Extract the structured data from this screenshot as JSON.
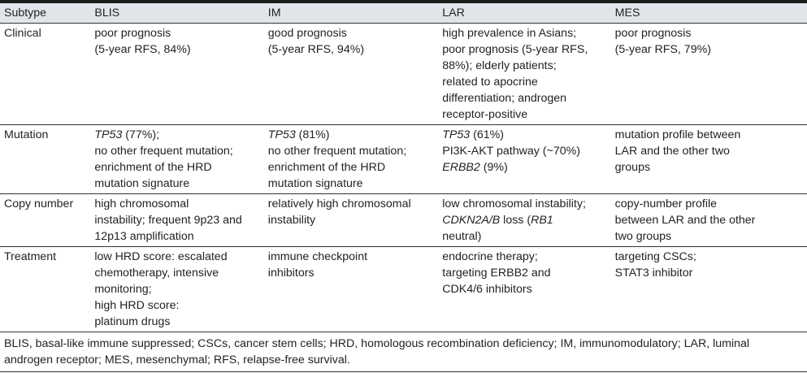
{
  "header": [
    "Subtype",
    "BLIS",
    "IM",
    "LAR",
    "MES"
  ],
  "rows": [
    {
      "label": "Clinical",
      "cells": [
        [
          [
            "poor prognosis"
          ],
          [
            "(5-year RFS, 84%)"
          ]
        ],
        [
          [
            "good prognosis"
          ],
          [
            "(5-year RFS, 94%)"
          ]
        ],
        [
          [
            "high prevalence in Asians;"
          ],
          [
            "poor prognosis (5-year RFS,"
          ],
          [
            "88%); elderly patients;"
          ],
          [
            "related to apocrine"
          ],
          [
            "differentiation; androgen"
          ],
          [
            "receptor-positive"
          ]
        ],
        [
          [
            "poor prognosis"
          ],
          [
            "(5-year RFS, 79%)"
          ]
        ]
      ]
    },
    {
      "label": "Mutation",
      "cells": [
        [
          [
            "*TP53",
            " (77%);"
          ],
          [
            "no other frequent mutation;"
          ],
          [
            "enrichment of the HRD"
          ],
          [
            "mutation signature"
          ]
        ],
        [
          [
            "*TP53",
            " (81%)"
          ],
          [
            "no other frequent mutation;"
          ],
          [
            "enrichment of the HRD"
          ],
          [
            "mutation signature"
          ]
        ],
        [
          [
            "*TP53",
            " (61%)"
          ],
          [
            "PI3K-AKT pathway (~70%)"
          ],
          [
            "*ERBB2",
            " (9%)"
          ]
        ],
        [
          [
            "mutation profile between"
          ],
          [
            "LAR and the other two"
          ],
          [
            "groups"
          ]
        ]
      ]
    },
    {
      "label": "Copy number",
      "cells": [
        [
          [
            "high chromosomal"
          ],
          [
            "instability; frequent 9p23 and"
          ],
          [
            "12p13 amplification"
          ]
        ],
        [
          [
            "relatively high chromosomal"
          ],
          [
            "instability"
          ]
        ],
        [
          [
            "low chromosomal instability;"
          ],
          [
            "*CDKN2A/B",
            " loss (",
            "*RB1"
          ],
          [
            "neutral)"
          ]
        ],
        [
          [
            "copy-number profile"
          ],
          [
            "between LAR and the other"
          ],
          [
            "two groups"
          ]
        ]
      ]
    },
    {
      "label": "Treatment",
      "cells": [
        [
          [
            "low HRD score: escalated"
          ],
          [
            "chemotherapy, intensive"
          ],
          [
            "monitoring;"
          ],
          [
            "high HRD score:"
          ],
          [
            "platinum drugs"
          ]
        ],
        [
          [
            "immune checkpoint"
          ],
          [
            "inhibitors"
          ]
        ],
        [
          [
            "endocrine therapy;"
          ],
          [
            "targeting ERBB2 and"
          ],
          [
            "CDK4/6 inhibitors"
          ]
        ],
        [
          [
            "targeting CSCs;"
          ],
          [
            "STAT3 inhibitor"
          ]
        ]
      ]
    }
  ],
  "footnote": [
    "BLIS, basal-like immune suppressed; CSCs, cancer stem cells; HRD, homologous recombination deficiency; IM, immunomodulatory; LAR, luminal",
    "androgen receptor; MES, mesenchymal; RFS, relapse-free survival."
  ],
  "colors": {
    "header_band": "#e1e5ea",
    "rule": "#1c1c1c",
    "text": "#222222"
  }
}
